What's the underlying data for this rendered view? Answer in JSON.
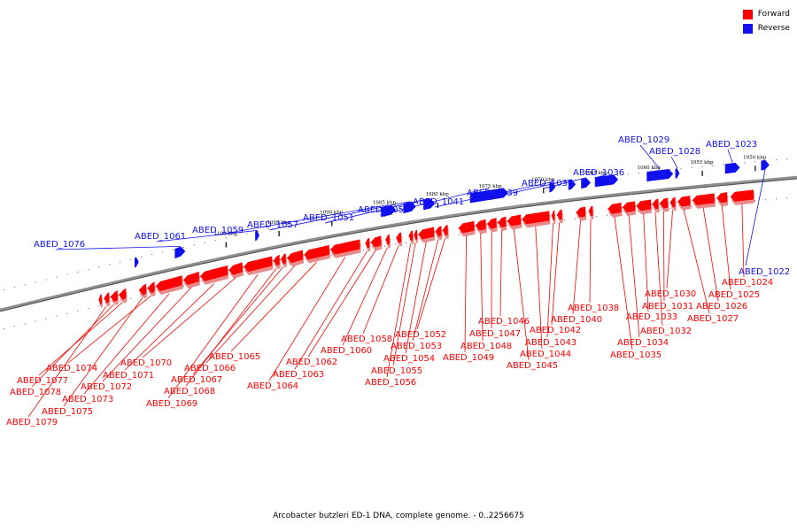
{
  "caption": "Arcobacter butzleri ED-1 DNA, complete genome. - 0..2256675",
  "legend": [
    {
      "label": "Forward",
      "color": "#ff0000"
    },
    {
      "label": "Reverse",
      "color": "#1010ee"
    }
  ],
  "colors": {
    "forward": "#ff0000",
    "forward_shadow": "#e88a8a",
    "reverse": "#1010ee",
    "backbone": "#909090",
    "backbone_shadow": "#505050"
  },
  "scale_labels": [
    {
      "text": "1050 kbp",
      "pos": 1050
    },
    {
      "text": "1055 kbp",
      "pos": 1055
    },
    {
      "text": "1060 kbp",
      "pos": 1060
    },
    {
      "text": "1065 kbp",
      "pos": 1065
    },
    {
      "text": "1070 kbp",
      "pos": 1070
    },
    {
      "text": "1075 kbp",
      "pos": 1075
    },
    {
      "text": "1080 kbp",
      "pos": 1080
    },
    {
      "text": "1085 kbp",
      "pos": 1085
    },
    {
      "text": "1090 kbp",
      "pos": 1090
    },
    {
      "text": "1095 kbp",
      "pos": 1095
    },
    {
      "text": "1100 kbp",
      "pos": 1100
    }
  ],
  "reverse_genes": [
    {
      "label": "ABED_1022",
      "start": 1048.6,
      "end": 1049.4
    },
    {
      "label": "ABED_1023",
      "start": 1051.4,
      "end": 1052.8
    },
    {
      "label": "ABED_1028",
      "start": 1057.1,
      "end": 1057.5
    },
    {
      "label": "ABED_1029",
      "start": 1057.7,
      "end": 1060.2
    },
    {
      "label": "ABED_1036",
      "start": 1062.9,
      "end": 1065.1
    },
    {
      "label": "ABED_1037",
      "start": 1065.5,
      "end": 1066.4
    },
    {
      "label": "ABED_1039",
      "start": 1066.9,
      "end": 1067.6
    },
    {
      "label": "ABED_1041",
      "start": 1068.8,
      "end": 1069.4
    },
    {
      "label": "ABED_1050",
      "start": 1073.3,
      "end": 1076.9
    },
    {
      "label": "ABED_1051",
      "start": 1080.2,
      "end": 1081.3
    },
    {
      "label": "ABED_1057",
      "start": 1082.0,
      "end": 1083.2
    },
    {
      "label": "ABED_1059",
      "start": 1083.9,
      "end": 1085.3
    },
    {
      "label": "ABED_1061",
      "start": 1096.8,
      "end": 1097.2
    },
    {
      "label": "ABED_1076",
      "start": 1103.8,
      "end": 1104.8
    },
    {
      "label": "",
      "start": 1108.2,
      "end": 1108.6
    }
  ],
  "forward_genes": [
    {
      "label": "ABED_1024",
      "start": 1050.1,
      "end": 1052.3
    },
    {
      "label": "ABED_1025",
      "start": 1052.6,
      "end": 1053.6
    },
    {
      "label": "ABED_1026",
      "start": 1053.8,
      "end": 1055.9
    },
    {
      "label": "ABED_1027",
      "start": 1056.1,
      "end": 1057.3
    },
    {
      "label": "ABED_1030",
      "start": 1057.5,
      "end": 1058.0
    },
    {
      "label": "ABED_1031",
      "start": 1058.2,
      "end": 1059.0
    },
    {
      "label": "ABED_1032",
      "start": 1059.1,
      "end": 1059.7
    },
    {
      "label": "ABED_1033",
      "start": 1059.8,
      "end": 1061.2
    },
    {
      "label": "ABED_1034",
      "start": 1061.3,
      "end": 1062.5
    },
    {
      "label": "ABED_1035",
      "start": 1062.6,
      "end": 1063.9
    },
    {
      "label": "ABED_1038",
      "start": 1065.3,
      "end": 1065.7
    },
    {
      "label": "ABED_1040",
      "start": 1066.0,
      "end": 1066.9
    },
    {
      "label": "ABED_1042",
      "start": 1068.2,
      "end": 1068.7
    },
    {
      "label": "ABED_1043",
      "start": 1068.9,
      "end": 1069.2
    },
    {
      "label": "ABED_1044",
      "start": 1069.4,
      "end": 1072.0
    },
    {
      "label": "ABED_1045",
      "start": 1072.1,
      "end": 1073.4
    },
    {
      "label": "ABED_1046",
      "start": 1073.5,
      "end": 1074.3
    },
    {
      "label": "ABED_1047",
      "start": 1074.4,
      "end": 1075.3
    },
    {
      "label": "ABED_1048",
      "start": 1075.4,
      "end": 1076.4
    },
    {
      "label": "ABED_1049",
      "start": 1076.5,
      "end": 1078.0
    },
    {
      "label": "ABED_1052",
      "start": 1079.0,
      "end": 1079.5
    },
    {
      "label": "ABED_1053",
      "start": 1079.6,
      "end": 1080.2
    },
    {
      "label": "ABED_1054",
      "start": 1080.3,
      "end": 1081.8
    },
    {
      "label": "ABED_1055",
      "start": 1081.9,
      "end": 1082.2
    },
    {
      "label": "ABED_1056",
      "start": 1082.3,
      "end": 1082.7
    },
    {
      "label": "ABED_1058",
      "start": 1083.4,
      "end": 1083.9
    },
    {
      "label": "ABED_1060",
      "start": 1084.5,
      "end": 1084.9
    },
    {
      "label": "ABED_1062",
      "start": 1085.3,
      "end": 1086.3
    },
    {
      "label": "ABED_1063",
      "start": 1086.4,
      "end": 1086.8
    },
    {
      "label": "ABED_1064",
      "start": 1087.3,
      "end": 1090.1
    },
    {
      "label": "ABED_1065",
      "start": 1090.2,
      "end": 1092.6
    },
    {
      "label": "ABED_1066",
      "start": 1092.7,
      "end": 1094.2
    },
    {
      "label": "ABED_1067",
      "start": 1094.3,
      "end": 1094.8
    },
    {
      "label": "ABED_1068",
      "start": 1094.9,
      "end": 1095.5
    },
    {
      "label": "ABED_1069",
      "start": 1095.6,
      "end": 1098.3
    },
    {
      "label": "ABED_1070",
      "start": 1098.4,
      "end": 1099.7
    },
    {
      "label": "ABED_1071",
      "start": 1099.8,
      "end": 1102.4
    },
    {
      "label": "ABED_1072",
      "start": 1102.5,
      "end": 1104.0
    },
    {
      "label": "ABED_1073",
      "start": 1104.1,
      "end": 1106.6
    },
    {
      "label": "ABED_1074",
      "start": 1106.7,
      "end": 1107.4
    },
    {
      "label": "ABED_1075",
      "start": 1107.5,
      "end": 1108.2
    },
    {
      "label": "ABED_1077",
      "start": 1109.4,
      "end": 1110.1
    },
    {
      "label": "ABED_1078",
      "start": 1110.2,
      "end": 1110.9
    },
    {
      "label": "ABED_1079",
      "start": 1111.0,
      "end": 1111.5
    },
    {
      "label": "",
      "start": 1111.7,
      "end": 1112.0
    }
  ]
}
